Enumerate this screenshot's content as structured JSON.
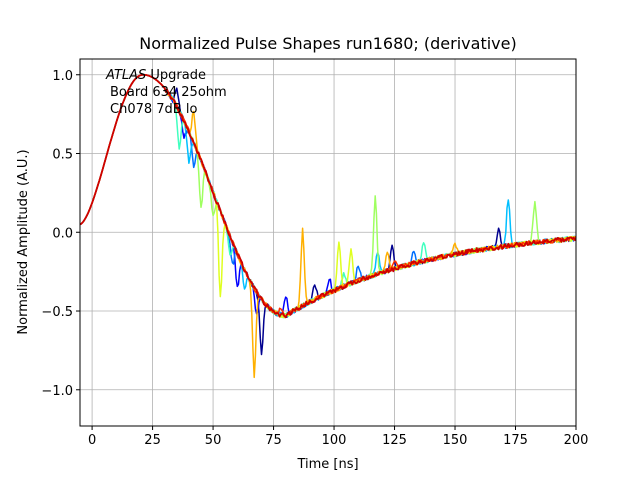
{
  "chart_data": {
    "type": "line",
    "title": "Normalized Pulse Shapes run1680; (derivative)",
    "xlabel": "Time [ns]",
    "ylabel": "Normalized Amplitude (A.U.)",
    "xlim": [
      -5,
      200
    ],
    "ylim": [
      -1.23,
      1.1
    ],
    "xticks": [
      0,
      25,
      50,
      75,
      100,
      125,
      150,
      175,
      200
    ],
    "yticks": [
      -1.0,
      -0.5,
      0.0,
      0.5,
      1.0
    ],
    "xtick_labels": [
      "0",
      "25",
      "50",
      "75",
      "100",
      "125",
      "150",
      "175",
      "200"
    ],
    "ytick_labels": [
      "−1.0",
      "−0.5",
      "0.0",
      "0.5",
      "1.0"
    ],
    "grid": true,
    "annotation": {
      "italic_part": "ATLAS",
      "rest_line1": " Upgrade",
      "line2": "Board 634 25ohm",
      "line3": "Ch078 7dB lo"
    },
    "series": [
      {
        "color": "#00008f",
        "glitches": [
          [
            35,
            0.12
          ],
          [
            70,
            -0.35
          ],
          [
            92,
            0.1
          ],
          [
            124,
            0.15
          ],
          [
            168,
            0.12
          ]
        ]
      },
      {
        "color": "#0000ff",
        "glitches": [
          [
            38,
            -0.1
          ],
          [
            60,
            -0.22
          ],
          [
            68,
            -0.15
          ],
          [
            80,
            0.12
          ],
          [
            98,
            0.09
          ]
        ]
      },
      {
        "color": "#006fff",
        "glitches": [
          [
            42,
            -0.15
          ],
          [
            58,
            -0.14
          ],
          [
            110,
            0.1
          ],
          [
            133,
            0.08
          ]
        ]
      },
      {
        "color": "#00bfff",
        "glitches": [
          [
            40,
            -0.2
          ],
          [
            63,
            -0.12
          ],
          [
            118,
            0.13
          ],
          [
            172,
            0.3
          ]
        ]
      },
      {
        "color": "#40ffbf",
        "glitches": [
          [
            36,
            -0.25
          ],
          [
            57,
            -0.12
          ],
          [
            104,
            0.08
          ],
          [
            137,
            0.12
          ]
        ]
      },
      {
        "color": "#9fff60",
        "glitches": [
          [
            45,
            -0.3
          ],
          [
            50,
            -0.15
          ],
          [
            117,
            0.5
          ],
          [
            183,
            0.26
          ]
        ]
      },
      {
        "color": "#dfff1f",
        "glitches": [
          [
            53,
            -0.55
          ],
          [
            102,
            0.3
          ],
          [
            107,
            0.22
          ]
        ]
      },
      {
        "color": "#ffb000",
        "glitches": [
          [
            42,
            0.2
          ],
          [
            67,
            -0.56
          ],
          [
            87,
            0.48
          ],
          [
            122,
            0.12
          ],
          [
            150,
            0.06
          ]
        ]
      },
      {
        "color": "#ff3000",
        "glitches": [
          [
            78,
            0.05
          ],
          [
            125,
            0.04
          ]
        ]
      },
      {
        "color": "#cf0000",
        "glitches": []
      }
    ]
  }
}
